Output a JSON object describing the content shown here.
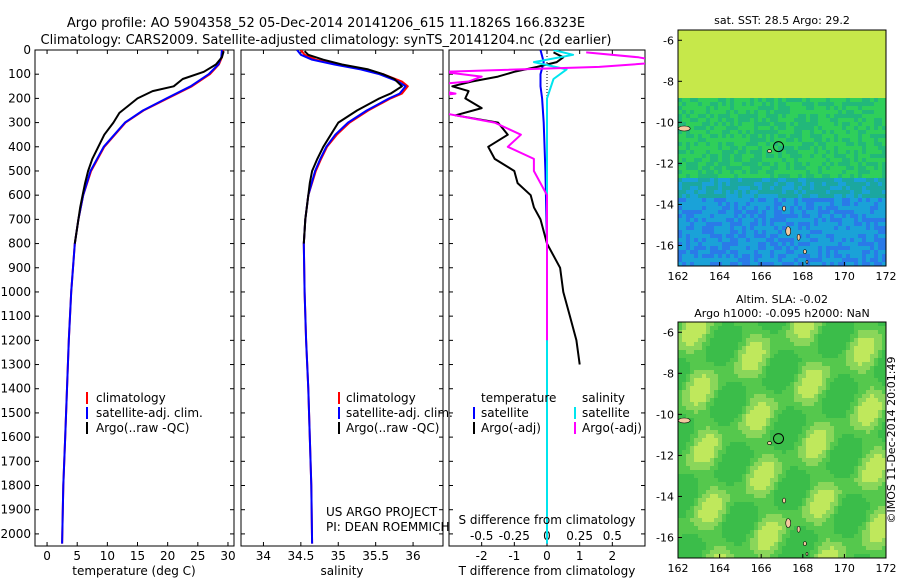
{
  "title_line1": "Argo profile: AO 5904358_52 05-Dec-2014 20141206_615 11.1826S 166.8323E",
  "title_line2": "Climatology: CARS2009. Satellite-adjusted climatology: synTS_20141204.nc (2d earlier)",
  "colors": {
    "climatology": "#ff0000",
    "satellite": "#0000ff",
    "argo": "#000000",
    "sat_salinity": "#00e5ee",
    "argo_adj_salinity": "#ff00ff"
  },
  "chart_data": [
    {
      "type": "line",
      "xlabel": "temperature (deg C)",
      "ylabel": "",
      "xlim": [
        -2,
        31
      ],
      "ylim": [
        2050,
        0
      ],
      "xticks": [
        0,
        5,
        10,
        15,
        20,
        25,
        30
      ],
      "yticks": [
        0,
        100,
        200,
        300,
        400,
        500,
        600,
        700,
        800,
        900,
        1000,
        1100,
        1200,
        1300,
        1400,
        1500,
        1600,
        1700,
        1800,
        1900,
        2000
      ],
      "legend": [
        "climatology",
        "satellite-adj. clim.",
        "Argo(..raw -QC)"
      ],
      "legend_placement": "lower-center",
      "series": [
        {
          "name": "climatology",
          "color": "#ff0000",
          "depth": [
            0,
            30,
            60,
            100,
            150,
            200,
            250,
            300,
            400,
            500,
            600,
            700,
            800,
            1000,
            1200,
            1400,
            1600,
            1800,
            2040
          ],
          "values": [
            29.2,
            29.0,
            28.5,
            27.0,
            24.0,
            20.0,
            16.0,
            13.0,
            9.5,
            7.3,
            6.0,
            5.2,
            4.6,
            4.0,
            3.6,
            3.3,
            3.0,
            2.7,
            2.5
          ]
        },
        {
          "name": "satellite-adj. clim.",
          "color": "#0000ff",
          "depth": [
            0,
            30,
            60,
            100,
            150,
            200,
            250,
            300,
            400,
            500,
            600,
            700,
            800,
            1000,
            1200,
            1400,
            1600,
            1800,
            2040
          ],
          "values": [
            29.0,
            28.9,
            28.4,
            26.8,
            23.8,
            19.8,
            15.9,
            12.9,
            9.4,
            7.2,
            6.0,
            5.2,
            4.6,
            4.0,
            3.6,
            3.3,
            3.0,
            2.7,
            2.5
          ]
        },
        {
          "name": "Argo(..raw -QC)",
          "color": "#000000",
          "depth": [
            5,
            30,
            60,
            90,
            120,
            150,
            170,
            200,
            230,
            260,
            300,
            350,
            400,
            450,
            500,
            550,
            600,
            650,
            700,
            800
          ],
          "values": [
            29.3,
            29.0,
            28.0,
            26.0,
            22.5,
            21.0,
            17.5,
            15.0,
            13.5,
            12.0,
            11.0,
            9.5,
            8.5,
            7.5,
            6.8,
            6.3,
            5.9,
            5.5,
            5.2,
            4.6
          ]
        }
      ]
    },
    {
      "type": "line",
      "xlabel": "salinity",
      "xlim": [
        33.7,
        36.4
      ],
      "ylim": [
        2050,
        0
      ],
      "xticks": [
        34,
        34.5,
        35,
        35.5,
        36
      ],
      "legend": [
        "climatology",
        "satellite-adj. clim.",
        "Argo(..raw -QC)"
      ],
      "annotations": [
        "US ARGO PROJECT",
        "PI: DEAN ROEMMICH"
      ],
      "series": [
        {
          "name": "climatology",
          "color": "#ff0000",
          "depth": [
            0,
            20,
            40,
            60,
            80,
            100,
            130,
            150,
            180,
            200,
            250,
            300,
            350,
            400,
            450,
            500,
            600,
            700,
            800,
            1000,
            1200,
            1400,
            1600,
            1800,
            2040
          ],
          "values": [
            34.5,
            34.55,
            34.7,
            35.0,
            35.35,
            35.6,
            35.85,
            35.93,
            35.85,
            35.7,
            35.4,
            35.15,
            34.98,
            34.85,
            34.77,
            34.7,
            34.6,
            34.56,
            34.54,
            34.55,
            34.57,
            34.6,
            34.62,
            34.64,
            34.65
          ]
        },
        {
          "name": "satellite-adj. clim.",
          "color": "#0000ff",
          "depth": [
            0,
            20,
            40,
            60,
            80,
            100,
            130,
            150,
            180,
            200,
            250,
            300,
            350,
            400,
            450,
            500,
            600,
            700,
            800,
            1000,
            1200,
            1400,
            1600,
            1800,
            2040
          ],
          "values": [
            34.45,
            34.5,
            34.65,
            34.95,
            35.3,
            35.55,
            35.8,
            35.9,
            35.82,
            35.68,
            35.38,
            35.13,
            34.96,
            34.84,
            34.76,
            34.69,
            34.6,
            34.56,
            34.54,
            34.55,
            34.57,
            34.6,
            34.62,
            34.64,
            34.65
          ]
        },
        {
          "name": "Argo(..raw -QC)",
          "color": "#000000",
          "depth": [
            5,
            20,
            40,
            60,
            80,
            100,
            120,
            150,
            180,
            200,
            250,
            300,
            350,
            400,
            450,
            500,
            550,
            600,
            700,
            800
          ],
          "values": [
            34.55,
            34.6,
            34.8,
            35.05,
            35.4,
            35.6,
            35.75,
            35.85,
            35.7,
            35.55,
            35.25,
            35.0,
            34.9,
            34.8,
            34.72,
            34.65,
            34.62,
            34.6,
            34.56,
            34.54
          ]
        }
      ]
    },
    {
      "type": "line",
      "xlabel": "T difference from climatology",
      "xlabel_top": "S difference from climatology",
      "xlim": [
        -3,
        3
      ],
      "ylim": [
        2050,
        0
      ],
      "xticks": [
        -2,
        -1,
        0,
        1,
        2
      ],
      "xticks_top": [
        -0.5,
        -0.25,
        0,
        0.25,
        0.5
      ],
      "legend_temperature": [
        "temperature",
        "satellite",
        "Argo(-adj)"
      ],
      "legend_salinity": [
        "salinity",
        "satellite",
        "Argo(-adj)"
      ],
      "series": [
        {
          "name": "T satellite",
          "color": "#0000ff",
          "depth": [
            0,
            50,
            100,
            150,
            200,
            300,
            500,
            800,
            1200,
            2040
          ],
          "values": [
            -0.2,
            -0.1,
            -0.2,
            -0.2,
            -0.15,
            -0.1,
            -0.05,
            0,
            0,
            0
          ]
        },
        {
          "name": "T Argo(-adj)",
          "color": "#000000",
          "depth": [
            10,
            30,
            50,
            70,
            90,
            110,
            130,
            150,
            170,
            200,
            240,
            270,
            300,
            350,
            400,
            450,
            500,
            550,
            600,
            650,
            700,
            800,
            900,
            1000,
            1100,
            1200,
            1300
          ],
          "values": [
            0.2,
            0.5,
            0.3,
            -0.3,
            -1.0,
            -1.5,
            -2.3,
            -2.9,
            -2.4,
            -2.5,
            -2.0,
            -2.8,
            -1.5,
            -1.2,
            -1.8,
            -1.6,
            -1.0,
            -0.9,
            -0.5,
            -0.4,
            -0.2,
            0.0,
            0.4,
            0.5,
            0.7,
            0.9,
            1.0
          ]
        },
        {
          "name": "S satellite",
          "color": "#00e5ee",
          "depth": [
            0,
            20,
            50,
            80,
            120,
            200,
            400,
            800,
            1200,
            2040
          ],
          "values": [
            0.05,
            0.2,
            -0.1,
            0.15,
            0.05,
            0.0,
            0.0,
            0.0,
            0.0,
            0.0
          ]
        },
        {
          "name": "S Argo(-adj)",
          "color": "#ff00ff",
          "depth": [
            10,
            30,
            50,
            70,
            90,
            110,
            130,
            150,
            180,
            210,
            250,
            300,
            350,
            400,
            450,
            500,
            600,
            700,
            800,
            1000,
            1200
          ],
          "values": [
            0.3,
            0.7,
            0.9,
            0.4,
            -0.8,
            -0.5,
            -0.6,
            -1.0,
            -0.7,
            -1.2,
            -0.9,
            -0.4,
            -0.2,
            -0.3,
            -0.1,
            -0.1,
            0.0,
            0.0,
            0.0,
            0.0,
            0.0
          ]
        }
      ]
    },
    {
      "type": "heatmap",
      "title": "sat. SST: 28.5  Argo: 29.2",
      "xlim": [
        162,
        172
      ],
      "ylim": [
        -17,
        -5.5
      ],
      "xticks": [
        162,
        164,
        166,
        168,
        170,
        172
      ],
      "yticks": [
        -6,
        -8,
        -10,
        -12,
        -14,
        -16
      ],
      "float_position": {
        "lon": 166.8323,
        "lat": -11.1826
      }
    },
    {
      "type": "heatmap",
      "title_line1": "Altim. SLA: -0.02",
      "title_line2": "Argo h1000: -0.095 h2000: NaN",
      "xlim": [
        162,
        172
      ],
      "ylim": [
        -17,
        -5.5
      ],
      "xticks": [
        162,
        164,
        166,
        168,
        170,
        172
      ],
      "yticks": [
        -6,
        -8,
        -10,
        -12,
        -14,
        -16
      ],
      "float_position": {
        "lon": 166.8323,
        "lat": -11.1826
      }
    }
  ],
  "side_label": "©IMOS 11-Dec-2014 20:01:49"
}
